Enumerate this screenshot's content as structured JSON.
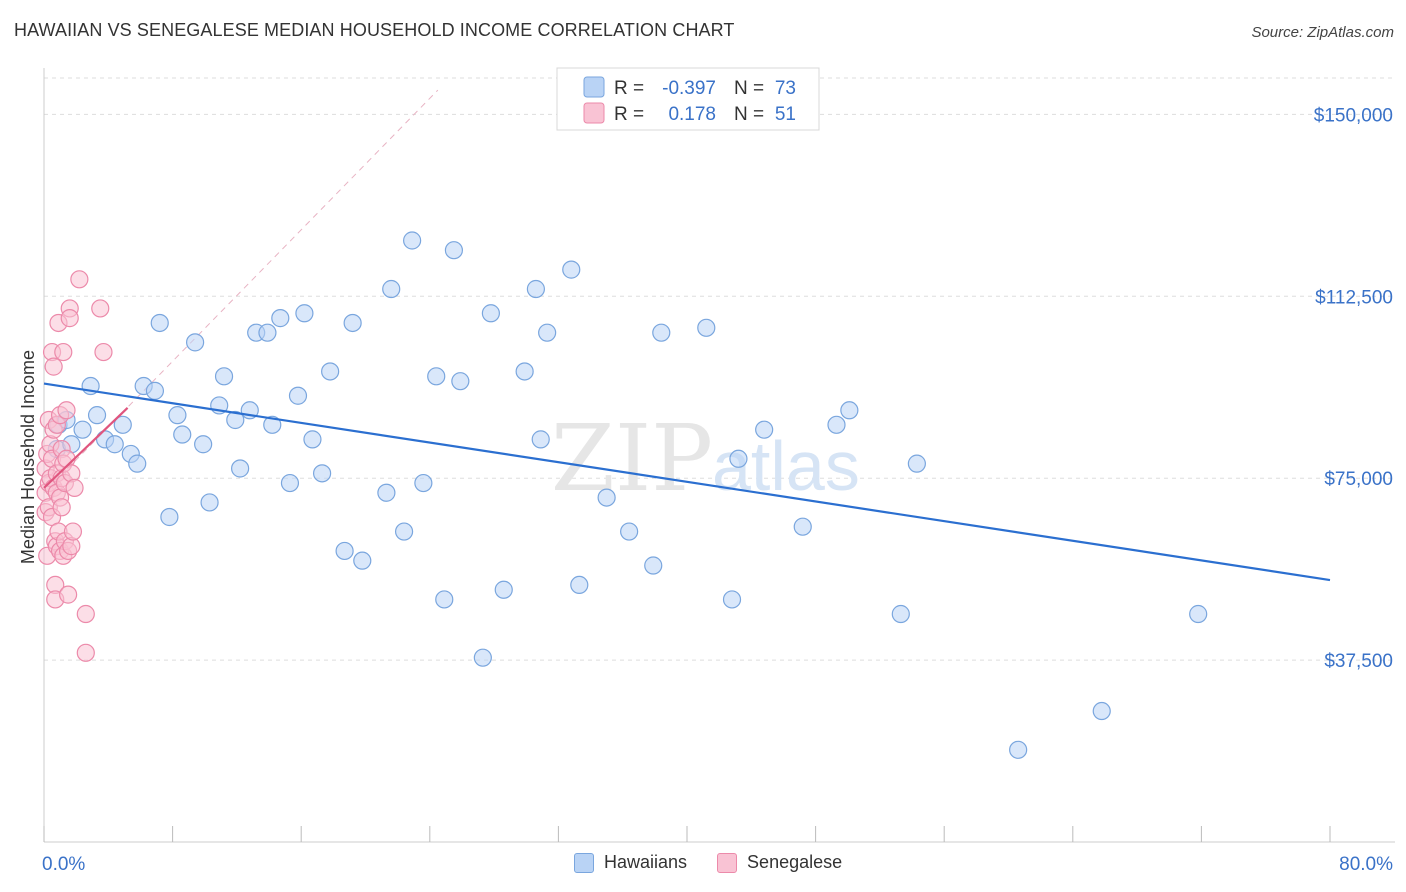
{
  "header": {
    "title": "HAWAIIAN VS SENEGALESE MEDIAN HOUSEHOLD INCOME CORRELATION CHART",
    "source": "Source: ZipAtlas.com"
  },
  "watermark": {
    "zip": "ZIP",
    "atlas": "atlas"
  },
  "colors": {
    "hawaiians_fill": "#b9d3f5",
    "hawaiians_stroke": "#7aa6de",
    "hawaiians_line": "#2b6fd0",
    "senegalese_fill": "#f9c3d4",
    "senegalese_stroke": "#ec8aaa",
    "senegalese_line": "#e0557e",
    "axis_label": "#3a72c8",
    "grid": "#dddddd"
  },
  "stats": [
    {
      "r_label": "R =",
      "r_value": "-0.397",
      "n_label": "N =",
      "n_value": "73"
    },
    {
      "r_label": "R =",
      "r_value": "0.178",
      "n_label": "N =",
      "n_value": "51"
    }
  ],
  "chart_data": {
    "type": "scatter",
    "title": "HAWAIIAN VS SENEGALESE MEDIAN HOUSEHOLD INCOME CORRELATION CHART",
    "xlabel": "",
    "ylabel": "Median Household Income",
    "xlim": [
      0,
      80
    ],
    "ylim": [
      0,
      157500
    ],
    "x_tick_labels": [
      "0.0%",
      "80.0%"
    ],
    "y_ticks": [
      37500,
      75000,
      112500,
      150000
    ],
    "y_tick_labels": [
      "$37,500",
      "$75,000",
      "$112,500",
      "$150,000"
    ],
    "grid": true,
    "legend_position": "bottom",
    "series": [
      {
        "name": "Hawaiians",
        "points": [
          [
            0.8,
            81000
          ],
          [
            0.9,
            86000
          ],
          [
            1.4,
            87000
          ],
          [
            1.7,
            82000
          ],
          [
            2.4,
            85000
          ],
          [
            2.9,
            94000
          ],
          [
            3.3,
            88000
          ],
          [
            3.8,
            83000
          ],
          [
            4.4,
            82000
          ],
          [
            4.9,
            86000
          ],
          [
            5.4,
            80000
          ],
          [
            5.8,
            78000
          ],
          [
            6.2,
            94000
          ],
          [
            6.9,
            93000
          ],
          [
            7.2,
            107000
          ],
          [
            7.8,
            67000
          ],
          [
            8.3,
            88000
          ],
          [
            8.6,
            84000
          ],
          [
            9.4,
            103000
          ],
          [
            9.9,
            82000
          ],
          [
            10.3,
            70000
          ],
          [
            10.9,
            90000
          ],
          [
            11.2,
            96000
          ],
          [
            11.9,
            87000
          ],
          [
            12.2,
            77000
          ],
          [
            12.8,
            89000
          ],
          [
            13.2,
            105000
          ],
          [
            13.9,
            105000
          ],
          [
            14.2,
            86000
          ],
          [
            14.7,
            108000
          ],
          [
            15.3,
            74000
          ],
          [
            15.8,
            92000
          ],
          [
            16.2,
            109000
          ],
          [
            16.7,
            83000
          ],
          [
            17.3,
            76000
          ],
          [
            17.8,
            97000
          ],
          [
            18.7,
            60000
          ],
          [
            19.2,
            107000
          ],
          [
            19.8,
            58000
          ],
          [
            21.3,
            72000
          ],
          [
            21.6,
            114000
          ],
          [
            22.4,
            64000
          ],
          [
            22.9,
            124000
          ],
          [
            23.6,
            74000
          ],
          [
            24.4,
            96000
          ],
          [
            24.9,
            50000
          ],
          [
            25.5,
            122000
          ],
          [
            25.9,
            95000
          ],
          [
            27.3,
            38000
          ],
          [
            27.8,
            109000
          ],
          [
            28.6,
            52000
          ],
          [
            29.9,
            97000
          ],
          [
            30.6,
            114000
          ],
          [
            30.9,
            83000
          ],
          [
            31.3,
            105000
          ],
          [
            32.8,
            118000
          ],
          [
            33.3,
            53000
          ],
          [
            35.0,
            71000
          ],
          [
            36.4,
            64000
          ],
          [
            37.9,
            57000
          ],
          [
            38.4,
            105000
          ],
          [
            41.2,
            106000
          ],
          [
            42.8,
            50000
          ],
          [
            43.2,
            79000
          ],
          [
            44.8,
            85000
          ],
          [
            47.2,
            65000
          ],
          [
            49.3,
            86000
          ],
          [
            50.1,
            89000
          ],
          [
            53.3,
            47000
          ],
          [
            54.3,
            78000
          ],
          [
            60.6,
            19000
          ],
          [
            65.8,
            27000
          ],
          [
            71.8,
            47000
          ]
        ],
        "trend": {
          "x": [
            0,
            80
          ],
          "y": [
            94500,
            54000
          ]
        }
      },
      {
        "name": "Senegalese",
        "points": [
          [
            0.1,
            77000
          ],
          [
            0.1,
            72000
          ],
          [
            0.1,
            68000
          ],
          [
            0.2,
            80000
          ],
          [
            0.2,
            59000
          ],
          [
            0.3,
            74000
          ],
          [
            0.3,
            69000
          ],
          [
            0.3,
            87000
          ],
          [
            0.4,
            75000
          ],
          [
            0.4,
            82000
          ],
          [
            0.5,
            101000
          ],
          [
            0.5,
            79000
          ],
          [
            0.5,
            67000
          ],
          [
            0.6,
            98000
          ],
          [
            0.6,
            73000
          ],
          [
            0.6,
            85000
          ],
          [
            0.7,
            62000
          ],
          [
            0.7,
            53000
          ],
          [
            0.7,
            50000
          ],
          [
            0.8,
            76000
          ],
          [
            0.8,
            86000
          ],
          [
            0.8,
            72000
          ],
          [
            0.8,
            61000
          ],
          [
            0.9,
            107000
          ],
          [
            0.9,
            64000
          ],
          [
            1.0,
            71000
          ],
          [
            1.0,
            88000
          ],
          [
            1.0,
            60000
          ],
          [
            1.1,
            81000
          ],
          [
            1.1,
            69000
          ],
          [
            1.1,
            75000
          ],
          [
            1.2,
            101000
          ],
          [
            1.2,
            59000
          ],
          [
            1.2,
            78000
          ],
          [
            1.3,
            62000
          ],
          [
            1.3,
            74000
          ],
          [
            1.4,
            89000
          ],
          [
            1.4,
            79000
          ],
          [
            1.5,
            60000
          ],
          [
            1.5,
            51000
          ],
          [
            1.6,
            110000
          ],
          [
            1.6,
            108000
          ],
          [
            1.7,
            76000
          ],
          [
            1.7,
            61000
          ],
          [
            1.8,
            64000
          ],
          [
            1.9,
            73000
          ],
          [
            2.2,
            116000
          ],
          [
            2.6,
            47000
          ],
          [
            2.6,
            39000
          ],
          [
            3.5,
            110000
          ],
          [
            3.7,
            101000
          ]
        ],
        "trend": {
          "x": [
            0,
            5.2
          ],
          "y": [
            73000,
            89500
          ]
        }
      }
    ],
    "reference_line": {
      "x": [
        0,
        24.5
      ],
      "y": [
        72000,
        155000
      ]
    }
  },
  "legend": {
    "items": [
      "Hawaiians",
      "Senegalese"
    ]
  }
}
